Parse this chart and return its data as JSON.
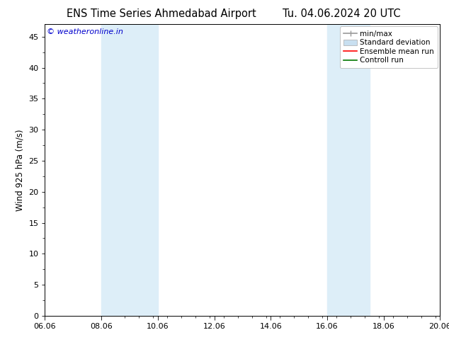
{
  "title": "ENS Time Series Ahmedabad Airport",
  "title2": "Tu. 04.06.2024 20 UTC",
  "ylabel": "Wind 925 hPa (m/s)",
  "ylim": [
    0,
    47
  ],
  "yticks": [
    0,
    5,
    10,
    15,
    20,
    25,
    30,
    35,
    40,
    45
  ],
  "x_start_days": 4.833,
  "x_end_days": 15.0,
  "xtick_positions": [
    1.0,
    3.0,
    5.0,
    7.0,
    9.0,
    11.0,
    13.0,
    15.0
  ],
  "xtick_labels": [
    "06.06",
    "08.06",
    "10.06",
    "12.06",
    "14.06",
    "16.06",
    "18.06",
    "20.06"
  ],
  "shaded_bands": [
    {
      "x_start": 3.0,
      "x_end": 5.0
    },
    {
      "x_start": 11.0,
      "x_end": 12.5
    }
  ],
  "shade_color": "#ddeef8",
  "bg_color": "#ffffff",
  "plot_bg_color": "#ffffff",
  "copyright_text": "© weatheronline.in",
  "copyright_color": "#0000cc",
  "legend_items": [
    {
      "label": "min/max",
      "color": "#999999",
      "lw": 1.2
    },
    {
      "label": "Standard deviation",
      "color": "#c8dff0",
      "lw": 6
    },
    {
      "label": "Ensemble mean run",
      "color": "#ff0000",
      "lw": 1.2
    },
    {
      "label": "Controll run",
      "color": "#007700",
      "lw": 1.2
    }
  ],
  "title_fontsize": 10.5,
  "axis_fontsize": 8.5,
  "tick_fontsize": 8,
  "legend_fontsize": 7.5,
  "copyright_fontsize": 8
}
